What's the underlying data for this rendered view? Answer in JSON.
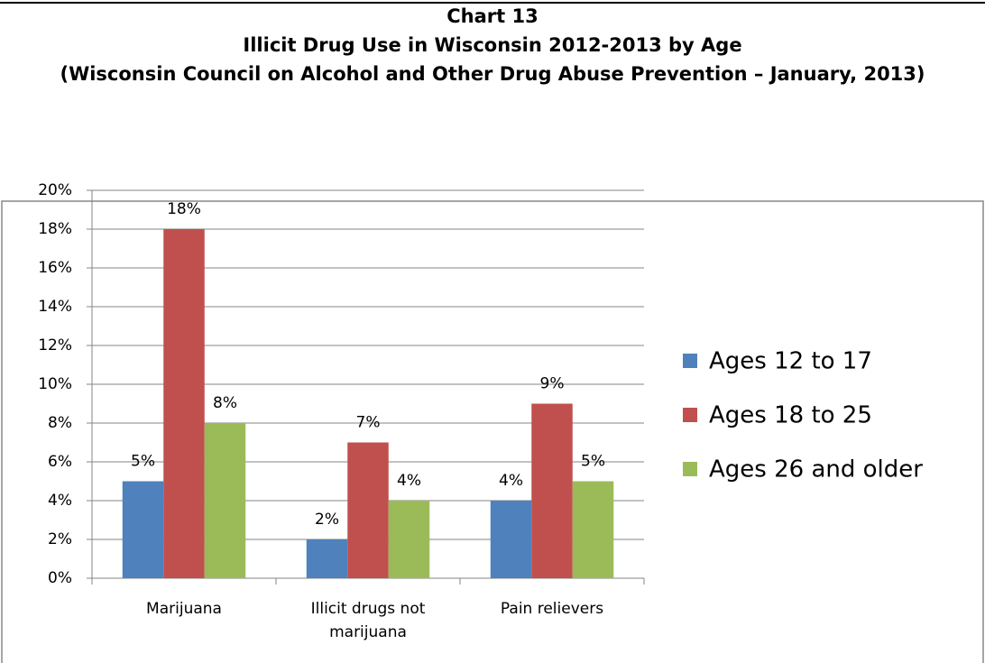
{
  "chart_data": {
    "type": "bar",
    "title": "Chart 13",
    "subtitle": "Illicit Drug Use in Wisconsin 2012-2013 by Age",
    "caption": "(Wisconsin Council on Alcohol and Other Drug Abuse Prevention – January, 2013)",
    "categories": [
      "Marijuana",
      "Illicit drugs not marijuana",
      "Pain relievers"
    ],
    "series": [
      {
        "name": "Ages 12 to 17",
        "color": "#4f81bd",
        "values": [
          5,
          2,
          4
        ],
        "value_labels": [
          "5%",
          "2%",
          "4%"
        ]
      },
      {
        "name": "Ages 18 to 25",
        "color": "#c0504d",
        "values": [
          18,
          7,
          9
        ],
        "value_labels": [
          "18%",
          "7%",
          "9%"
        ]
      },
      {
        "name": "Ages 26 and older",
        "color": "#9bbb59",
        "values": [
          8,
          4,
          5
        ],
        "value_labels": [
          "8%",
          "4%",
          "5%"
        ]
      }
    ],
    "ylim": [
      0,
      20
    ],
    "yticks": [
      {
        "value": 0,
        "label": "0%"
      },
      {
        "value": 2,
        "label": "2%"
      },
      {
        "value": 4,
        "label": "4%"
      },
      {
        "value": 6,
        "label": "6%"
      },
      {
        "value": 8,
        "label": "8%"
      },
      {
        "value": 10,
        "label": "10%"
      },
      {
        "value": 12,
        "label": "12%"
      },
      {
        "value": 14,
        "label": "14%"
      },
      {
        "value": 16,
        "label": "16%"
      },
      {
        "value": 18,
        "label": "18%"
      },
      {
        "value": 20,
        "label": "20%"
      }
    ],
    "grid": true,
    "legend": "right"
  }
}
